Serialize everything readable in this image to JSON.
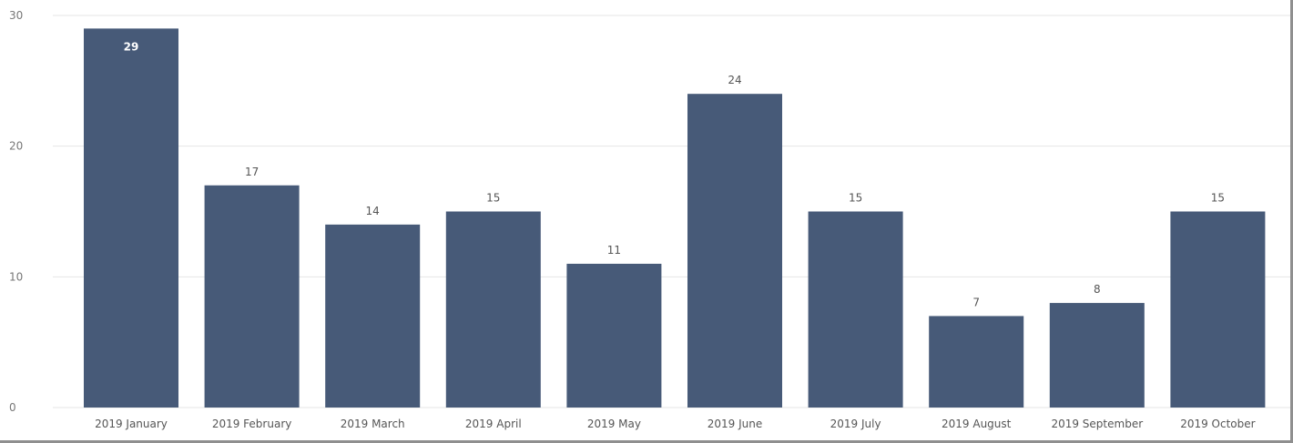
{
  "chart_data": {
    "type": "bar",
    "categories": [
      "2019 January",
      "2019 February",
      "2019 March",
      "2019 April",
      "2019 May",
      "2019 June",
      "2019 July",
      "2019 August",
      "2019 September",
      "2019 October"
    ],
    "values": [
      29,
      17,
      14,
      15,
      11,
      24,
      15,
      7,
      8,
      15
    ],
    "ylim": [
      0,
      30
    ],
    "yticks": [
      0,
      10,
      20,
      30
    ],
    "grid": true,
    "bar_color": "#475a78",
    "title": "",
    "xlabel": "",
    "ylabel": ""
  }
}
